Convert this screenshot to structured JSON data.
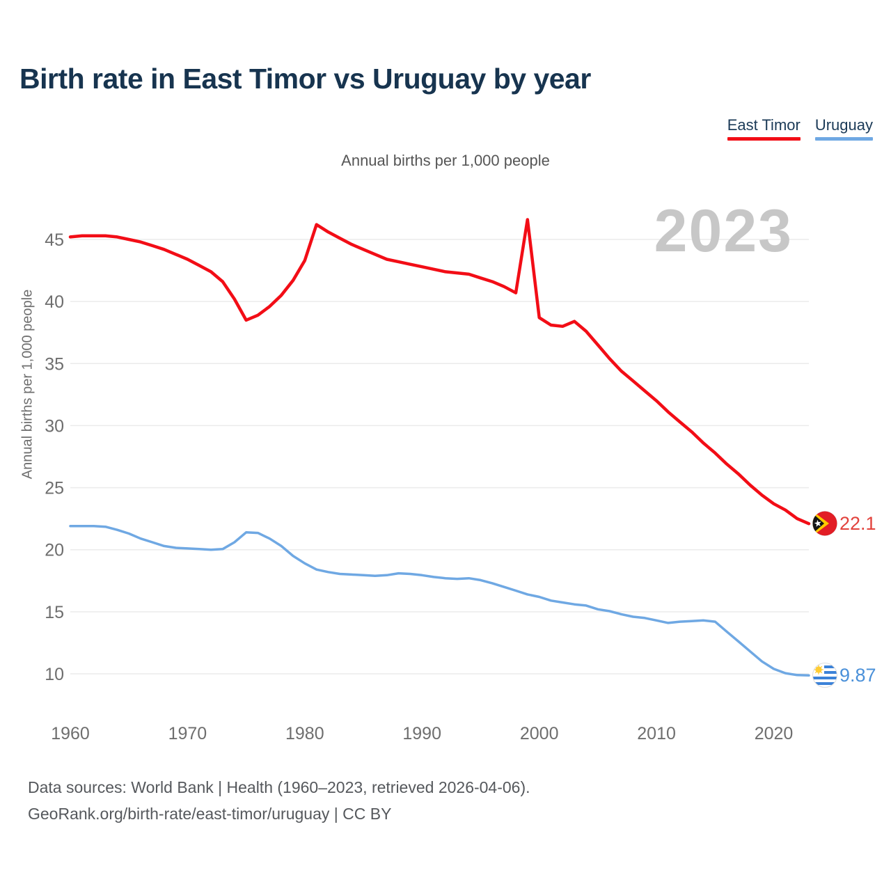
{
  "header": {
    "title": "Birth rate in East Timor vs Uruguay by year"
  },
  "legend": {
    "items": [
      {
        "label": "East Timor",
        "color": "#f20d16"
      },
      {
        "label": "Uruguay",
        "color": "#6fa8e3"
      }
    ]
  },
  "subtitle": "Annual births per 1,000 people",
  "watermark": "2023",
  "y_axis_title": "Annual births per 1,000 people",
  "end_labels": {
    "east_timor": {
      "value": "22.1",
      "color": "#e2423c"
    },
    "uruguay": {
      "value": "9.87",
      "color": "#4a90d9"
    }
  },
  "footer": {
    "line1": "Data sources: World Bank | Health (1960–2023, retrieved 2026-04-06).",
    "line2": "GeoRank.org/birth-rate/east-timor/uruguay | CC BY"
  },
  "chart_data": {
    "type": "line",
    "title": "Birth rate in East Timor vs Uruguay by year",
    "xlabel": "",
    "ylabel": "Annual births per 1,000 people",
    "x_start": 1960,
    "x_end": 2023,
    "x_ticks": [
      1960,
      1970,
      1980,
      1990,
      2000,
      2010,
      2020
    ],
    "y_ticks": [
      10,
      15,
      20,
      25,
      30,
      35,
      40,
      45
    ],
    "ylim": [
      8.5,
      47.5
    ],
    "grid": true,
    "legend_position": "top-right",
    "tick_color": "#6e6e6e",
    "grid_color": "#ebebeb",
    "series": [
      {
        "name": "East Timor",
        "color": "#f20d16",
        "stroke_width": 4.5,
        "values": [
          45.2,
          45.3,
          45.3,
          45.3,
          45.2,
          45.0,
          44.8,
          44.5,
          44.2,
          43.8,
          43.4,
          42.9,
          42.4,
          41.6,
          40.2,
          38.5,
          38.9,
          39.6,
          40.5,
          41.7,
          43.3,
          46.2,
          45.6,
          45.1,
          44.6,
          44.2,
          43.8,
          43.4,
          43.2,
          43.0,
          42.8,
          42.6,
          42.4,
          42.3,
          42.2,
          41.9,
          41.6,
          41.2,
          40.7,
          46.6,
          38.7,
          38.1,
          38.0,
          38.4,
          37.6,
          36.5,
          35.4,
          34.4,
          33.6,
          32.8,
          32.0,
          31.1,
          30.3,
          29.5,
          28.6,
          27.8,
          26.9,
          26.1,
          25.2,
          24.4,
          23.7,
          23.2,
          22.5,
          22.1
        ]
      },
      {
        "name": "Uruguay",
        "color": "#6fa8e3",
        "stroke_width": 3.5,
        "values": [
          21.9,
          21.9,
          21.9,
          21.85,
          21.6,
          21.3,
          20.9,
          20.6,
          20.3,
          20.15,
          20.1,
          20.05,
          20.0,
          20.05,
          20.6,
          21.4,
          21.35,
          20.9,
          20.3,
          19.5,
          18.9,
          18.4,
          18.2,
          18.05,
          18.0,
          17.95,
          17.9,
          17.95,
          18.1,
          18.05,
          17.95,
          17.8,
          17.7,
          17.65,
          17.7,
          17.55,
          17.3,
          17.0,
          16.7,
          16.4,
          16.2,
          15.9,
          15.75,
          15.6,
          15.5,
          15.2,
          15.05,
          14.8,
          14.6,
          14.5,
          14.3,
          14.1,
          14.2,
          14.25,
          14.3,
          14.2,
          13.4,
          12.6,
          11.8,
          11.0,
          10.4,
          10.05,
          9.9,
          9.87
        ]
      }
    ]
  }
}
